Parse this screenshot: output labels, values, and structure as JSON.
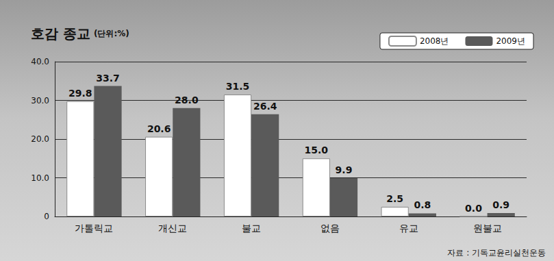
{
  "chart_data": {
    "type": "bar",
    "title": "호감 종교",
    "subtitle": "(단위:%)",
    "categories": [
      "가톨릭교",
      "개신교",
      "불교",
      "없음",
      "유교",
      "원불교"
    ],
    "series": [
      {
        "name": "2008년",
        "color": "#ffffff",
        "values": [
          29.8,
          20.6,
          31.5,
          15.0,
          2.5,
          0.0
        ],
        "value_labels": [
          "29.8",
          "20.6",
          "31.5",
          "15.0",
          "2.5",
          "0.0"
        ]
      },
      {
        "name": "2009년",
        "color": "#5a5a5a",
        "values": [
          33.7,
          28.0,
          26.4,
          9.9,
          0.8,
          0.9
        ],
        "value_labels": [
          "33.7",
          "28.0",
          "26.4",
          "9.9",
          "0.8",
          "0.9"
        ]
      }
    ],
    "ylim": [
      0,
      40
    ],
    "yticks": [
      0,
      {
        "value": 10,
        "label": "10.0"
      },
      {
        "value": 20,
        "label": "20.0"
      },
      {
        "value": 30,
        "label": "30.0"
      },
      {
        "value": 40,
        "label": "40.0"
      }
    ],
    "grid": true,
    "legend": "top-right",
    "data_labels": true,
    "annotations": [
      "자료 : 기독교윤리실천운동"
    ]
  }
}
